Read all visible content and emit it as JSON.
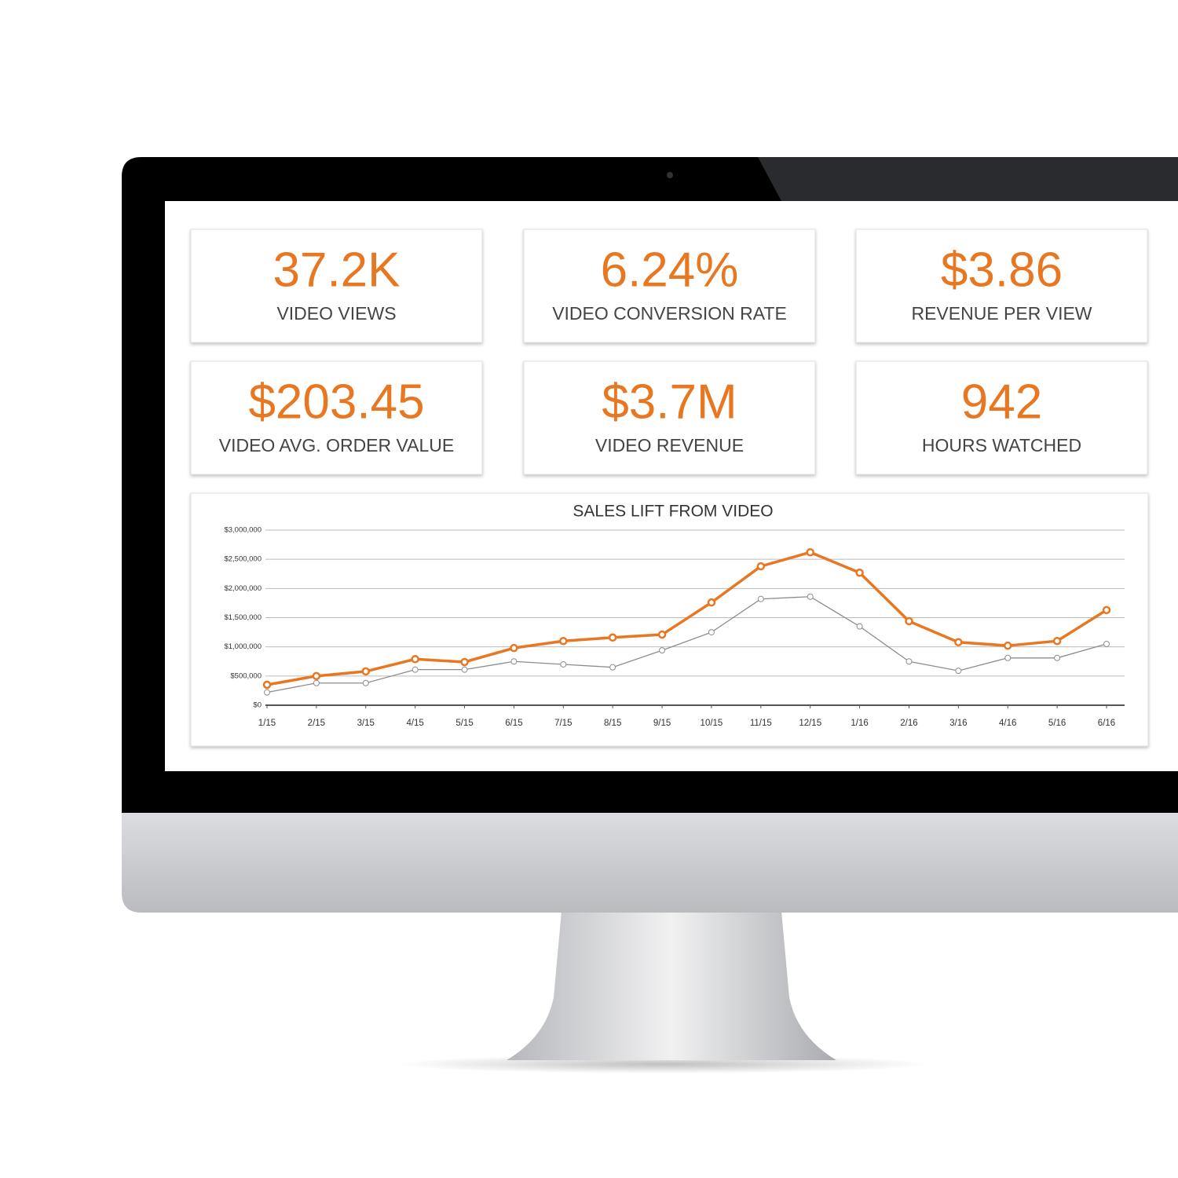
{
  "kpis": [
    {
      "value": "37.2K",
      "label": "VIDEO VIEWS"
    },
    {
      "value": "6.24%",
      "label": "VIDEO CONVERSION RATE"
    },
    {
      "value": "$3.86",
      "label": "REVENUE PER VIEW"
    },
    {
      "value": "$203.45",
      "label": "VIDEO AVG. ORDER VALUE"
    },
    {
      "value": "$3.7M",
      "label": "VIDEO REVENUE"
    },
    {
      "value": "942",
      "label": "HOURS WATCHED"
    }
  ],
  "chart_data": {
    "type": "line",
    "title": "SALES LIFT FROM VIDEO",
    "categories": [
      "1/15",
      "2/15",
      "3/15",
      "4/15",
      "5/15",
      "6/15",
      "7/15",
      "8/15",
      "9/15",
      "10/15",
      "11/15",
      "12/15",
      "1/16",
      "2/16",
      "3/16",
      "4/16",
      "5/16",
      "6/16"
    ],
    "series": [
      {
        "color": "#e87722",
        "values": [
          350000,
          500000,
          580000,
          790000,
          740000,
          980000,
          1100000,
          1160000,
          1210000,
          1760000,
          2380000,
          2620000,
          2270000,
          1440000,
          1080000,
          1020000,
          1100000,
          1630000
        ]
      },
      {
        "color": "#8c8c8c",
        "values": [
          220000,
          380000,
          380000,
          610000,
          610000,
          750000,
          700000,
          650000,
          940000,
          1250000,
          1820000,
          1860000,
          1350000,
          750000,
          590000,
          810000,
          810000,
          1050000
        ]
      }
    ],
    "ylim": [
      0,
      3000000
    ],
    "yticks": [
      {
        "value": 0,
        "label": "$0"
      },
      {
        "value": 500000,
        "label": "$500,000"
      },
      {
        "value": 1000000,
        "label": "$1,000,000"
      },
      {
        "value": 1500000,
        "label": "$1,500,000"
      },
      {
        "value": 2000000,
        "label": "$2,000,000"
      },
      {
        "value": 2500000,
        "label": "$2,500,000"
      },
      {
        "value": 3000000,
        "label": "$3,000,000"
      }
    ],
    "grid": true
  }
}
